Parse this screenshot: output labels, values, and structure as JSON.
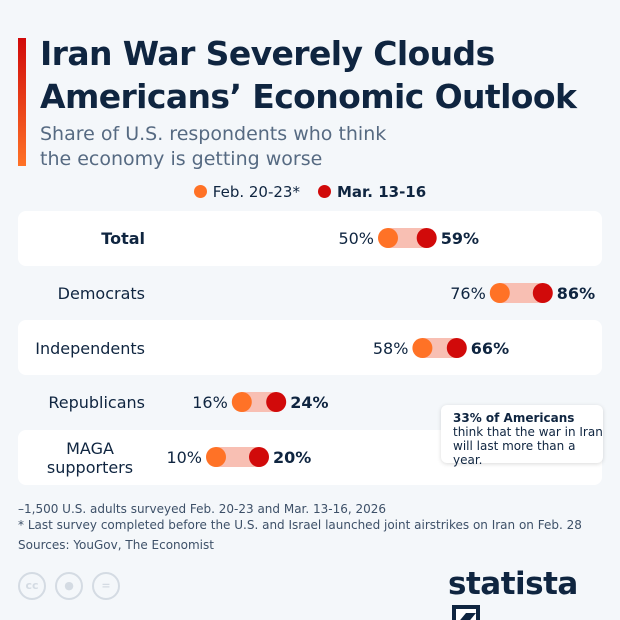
{
  "title": "Iran War Severely Clouds Americans’ Economic Outlook",
  "subtitle": "Share of U.S. respondents who think the economy is getting worse",
  "colors": {
    "feb": "#ff7226",
    "mar": "#d10a0a",
    "connector": "#f8bfb3",
    "accent_top": "#d10a0a",
    "accent_bottom": "#ff7226"
  },
  "chart_data": {
    "type": "dumbbell",
    "unit": "%",
    "xlim": [
      0,
      100
    ],
    "legend_position": "top-center",
    "series": [
      {
        "name": "Feb. 20-23*",
        "values": [
          50,
          76,
          58,
          16,
          10
        ]
      },
      {
        "name": "Mar. 13-16",
        "values": [
          59,
          86,
          66,
          24,
          20
        ]
      }
    ],
    "categories": [
      "Total",
      "Democrats",
      "Independents",
      "Republicans",
      "MAGA supporters"
    ]
  },
  "annotation": {
    "bold": "33% of Americans",
    "rest": " think that the war in Iran will last more than a year."
  },
  "footnotes": [
    "–1,500 U.S. adults surveyed Feb. 20-23 and Mar. 13-16, 2026",
    "* Last survey completed before the U.S. and Israel launched joint airstrikes on Iran on Feb. 28",
    "Sources: YouGov, The Economist"
  ],
  "license_icons": [
    "cc-icon",
    "attribution-icon",
    "no-derivatives-icon"
  ],
  "logo": "statista"
}
